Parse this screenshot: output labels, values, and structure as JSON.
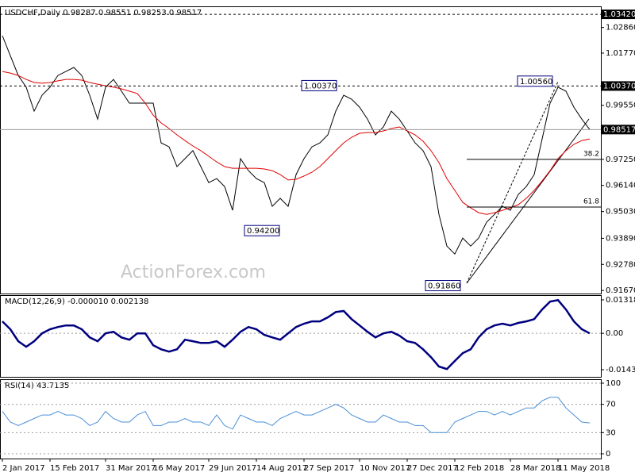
{
  "chart_data": [
    {
      "type": "line",
      "title": "USDCHF,Daily 0.98287 0.98551 0.98253 0.98517",
      "categories": [
        "2 Jan 2017",
        null,
        null,
        null,
        null,
        null,
        "15 Feb 2017",
        null,
        null,
        null,
        null,
        null,
        null,
        "31 Mar 2017",
        null,
        null,
        null,
        null,
        null,
        "16 May 2017",
        null,
        null,
        null,
        null,
        null,
        null,
        "29 Jun 2017",
        null,
        null,
        null,
        null,
        null,
        "14 Aug 2017",
        null,
        null,
        null,
        null,
        null,
        "27 Sep 2017",
        null,
        null,
        null,
        null,
        null,
        null,
        "10 Nov 2017",
        null,
        null,
        null,
        null,
        null,
        "27 Dec 2017",
        null,
        null,
        null,
        null,
        null,
        "12 Feb 2018",
        null,
        null,
        null,
        null,
        null,
        null,
        "28 Mar 2018",
        null,
        null,
        null,
        null,
        null,
        "11 May 2018",
        null,
        null,
        null,
        null
      ],
      "series": [
        {
          "color": "#000000",
          "values": [
            1.0251,
            1.0166,
            1.0082,
            1.0032,
            0.993,
            0.9998,
            1.0032,
            1.0082,
            1.0099,
            1.0116,
            1.0082,
            0.9998,
            0.9896,
            1.0032,
            1.0065,
            1.0015,
            0.9964,
            0.9964,
            0.9964,
            0.9964,
            0.9795,
            0.9778,
            0.9694,
            0.9728,
            0.9762,
            0.9694,
            0.9626,
            0.9643,
            0.9609,
            0.9508,
            0.9728,
            0.9677,
            0.9643,
            0.9626,
            0.9525,
            0.9559,
            0.9525,
            0.966,
            0.9728,
            0.9778,
            0.9795,
            0.9829,
            0.993,
            0.9998,
            0.9981,
            0.9947,
            0.9896,
            0.9829,
            0.9863,
            0.993,
            0.9896,
            0.9846,
            0.9795,
            0.9762,
            0.9694,
            0.9491,
            0.9356,
            0.9322,
            0.939,
            0.9356,
            0.939,
            0.9457,
            0.9491,
            0.9525,
            0.9508,
            0.9576,
            0.9609,
            0.966,
            0.9812,
            0.9964,
            1.0032,
            1.0015,
            0.9947,
            0.9896,
            0.98517
          ]
        },
        {
          "color": "#e00000",
          "values": [
            1.0099,
            1.0092,
            1.0082,
            1.0065,
            1.0052,
            1.0049,
            1.0052,
            1.0059,
            1.0065,
            1.0065,
            1.0062,
            1.0052,
            1.0045,
            1.0038,
            1.0032,
            1.0025,
            1.0015,
            1.0005,
            0.9964,
            0.9913,
            0.988,
            0.9856,
            0.9829,
            0.9805,
            0.9782,
            0.9762,
            0.9738,
            0.9714,
            0.9694,
            0.9687,
            0.9687,
            0.9687,
            0.9687,
            0.9684,
            0.9677,
            0.966,
            0.9637,
            0.964,
            0.9654,
            0.967,
            0.9694,
            0.9728,
            0.9762,
            0.9795,
            0.9819,
            0.9836,
            0.9839,
            0.9839,
            0.9846,
            0.9856,
            0.9863,
            0.9846,
            0.9829,
            0.9802,
            0.9762,
            0.9711,
            0.9643,
            0.9593,
            0.9542,
            0.9519,
            0.9498,
            0.9491,
            0.9498,
            0.9508,
            0.9519,
            0.9532,
            0.9559,
            0.9593,
            0.9633,
            0.9677,
            0.9728,
            0.9762,
            0.9789,
            0.9805,
            0.9812
          ]
        }
      ],
      "ylim": [
        0.9154,
        1.0376
      ],
      "yticks": [
        {
          "value": 1.0286,
          "label": "1.02860"
        },
        {
          "value": 1.0177,
          "label": "1.01770"
        },
        {
          "value": 0.9955,
          "label": "0.99550"
        },
        {
          "value": 0.9725,
          "label": "0.97250"
        },
        {
          "value": 0.9614,
          "label": "0.96140"
        },
        {
          "value": 0.9503,
          "label": "0.95030"
        },
        {
          "value": 0.9389,
          "label": "0.93890"
        },
        {
          "value": 0.9278,
          "label": "0.92780"
        },
        {
          "value": 0.9167,
          "label": "0.91670"
        }
      ],
      "price_labels": [
        {
          "value": 1.0342,
          "label": "1.03420"
        },
        {
          "value": 1.0037,
          "label": "1.00370"
        },
        {
          "value": 0.98517,
          "label": "0.98517"
        }
      ],
      "annotations": [
        {
          "value": 1.0037,
          "label": "1.00370"
        },
        {
          "value": 1.0056,
          "label": "1.00560"
        },
        {
          "value": 0.942,
          "label": "0.94200"
        },
        {
          "value": 0.9186,
          "label": "0.91860"
        }
      ],
      "fib_levels": [
        {
          "level": 38.2,
          "price": 0.9725
        },
        {
          "level": 61.8,
          "price": 0.9522
        }
      ],
      "watermark": "ActionForex.com"
    },
    {
      "type": "line",
      "title": "MACD(12,26,9) -0.000010 0.002138",
      "series": [
        {
          "color": "#00007f",
          "values": [
            0.0047,
            0.0016,
            -0.0031,
            -0.0053,
            -0.0031,
            0,
            0.0016,
            0.0025,
            0.0031,
            0.0031,
            0.0016,
            -0.0016,
            -0.0031,
            0,
            0.0006,
            -0.0016,
            -0.0025,
            0,
            0,
            -0.0047,
            -0.0063,
            -0.0072,
            -0.0063,
            -0.0025,
            -0.0031,
            -0.0038,
            -0.0038,
            -0.0031,
            -0.0053,
            -0.0025,
            0.0006,
            0.0025,
            0.0016,
            -0.0006,
            -0.0016,
            -0.0025,
            0,
            0.0025,
            0.0038,
            0.0047,
            0.0047,
            0.0063,
            0.0084,
            0.0088,
            0.0056,
            0.0031,
            0.0006,
            -0.0016,
            0,
            0.0006,
            -0.0009,
            -0.0031,
            -0.0038,
            -0.0063,
            -0.0094,
            -0.0131,
            -0.0141,
            -0.0109,
            -0.0078,
            -0.0063,
            -0.0016,
            0.0016,
            0.0031,
            0.0038,
            0.0031,
            0.0041,
            0.0047,
            0.0056,
            0.0094,
            0.0125,
            0.0131,
            0.0094,
            0.0047,
            0.0016,
            -1e-05
          ]
        }
      ],
      "ylim": [
        -0.01715,
        0.01506
      ],
      "yticks": [
        0.013184,
        {
          "value": 0,
          "label": "0.00"
        },
        -0.014339
      ]
    },
    {
      "type": "line",
      "title": "RSI(14) 43.7135",
      "series": [
        {
          "color": "#4a8fd6",
          "values": [
            60,
            45,
            40,
            45,
            50,
            55,
            55,
            60,
            55,
            55,
            50,
            40,
            45,
            60,
            50,
            45,
            45,
            55,
            60,
            40,
            40,
            45,
            45,
            50,
            45,
            45,
            40,
            55,
            40,
            35,
            55,
            50,
            45,
            45,
            40,
            50,
            55,
            60,
            55,
            55,
            60,
            65,
            70,
            65,
            55,
            50,
            45,
            45,
            55,
            50,
            45,
            45,
            40,
            40,
            30,
            30,
            30,
            45,
            50,
            55,
            60,
            60,
            55,
            60,
            55,
            60,
            65,
            65,
            75,
            80,
            80,
            65,
            55,
            45,
            43.7135
          ]
        }
      ],
      "ylim": [
        -6.7,
        105.6
      ],
      "yticks": [
        100,
        70,
        30,
        0
      ]
    }
  ]
}
